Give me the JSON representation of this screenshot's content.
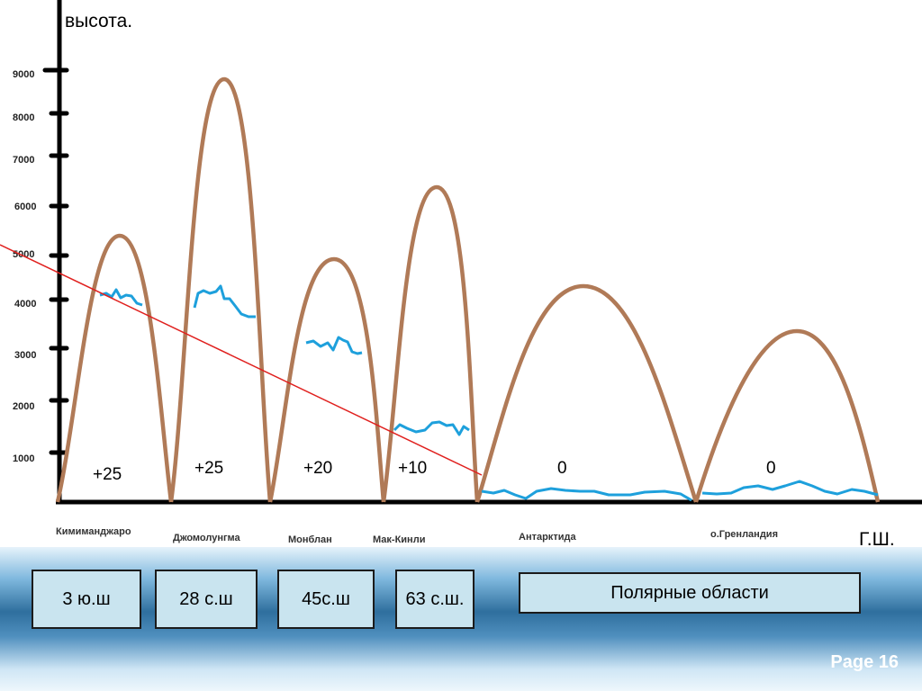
{
  "slide": {
    "y_axis_label": "высота.",
    "x_axis_label": "Г.Ш.",
    "y_ticks": [
      "1000",
      "2000",
      "3000",
      "4000",
      "5000",
      "6000",
      "7000",
      "8000",
      "9000"
    ],
    "peaks": [
      {
        "name": "Кимиманджаро",
        "height": 5400,
        "snowline": 4100,
        "temperature": "+25"
      },
      {
        "name": "Джомолунгма",
        "height": 8800,
        "snowline": 4200,
        "temperature": "+25"
      },
      {
        "name": "Монблан",
        "height": 4800,
        "snowline": 3200,
        "temperature": "+20"
      },
      {
        "name": "Мак-Кинли",
        "height": 6300,
        "snowline": 1500,
        "temperature": "+10"
      },
      {
        "name": "Антарктида",
        "height": 4300,
        "snowline": 100,
        "temperature": "0"
      },
      {
        "name": "о.Гренландия",
        "height": 3400,
        "snowline": 150,
        "temperature": "0"
      }
    ],
    "latitude_boxes": [
      "3 ю.ш",
      "28 с.ш",
      "45с.ш",
      "63 с.ш.",
      "Полярные области"
    ],
    "page_label": "Page 16",
    "colors": {
      "mountain": "#b07a57",
      "snowline": "#1ea0dc",
      "trend": "#e0201e",
      "axis": "#000000"
    }
  }
}
